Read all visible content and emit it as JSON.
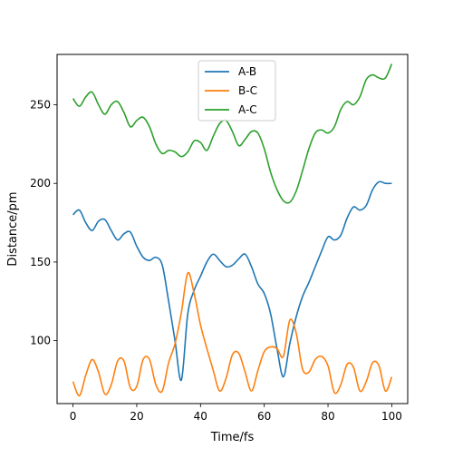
{
  "chart_data": {
    "type": "line",
    "xlabel": "Time/fs",
    "ylabel": "Distance/pm",
    "xlim": [
      -5,
      105
    ],
    "ylim": [
      60,
      282
    ],
    "xticks": [
      0,
      20,
      40,
      60,
      80,
      100
    ],
    "yticks": [
      100,
      150,
      200,
      250
    ],
    "grid": false,
    "legend_position": "upper-center",
    "x": [
      0,
      2,
      4,
      6,
      8,
      10,
      12,
      14,
      16,
      18,
      20,
      22,
      24,
      26,
      28,
      30,
      32,
      34,
      36,
      38,
      40,
      42,
      44,
      46,
      48,
      50,
      52,
      54,
      56,
      58,
      60,
      62,
      64,
      66,
      68,
      70,
      72,
      74,
      76,
      78,
      80,
      82,
      84,
      86,
      88,
      90,
      92,
      94,
      96,
      98,
      100
    ],
    "series": [
      {
        "name": "A-B",
        "color": "#1f77b4",
        "values": [
          180,
          183,
          175,
          170,
          176,
          177,
          170,
          164,
          168,
          169,
          160,
          153,
          151,
          153,
          148,
          125,
          100,
          75,
          117,
          132,
          141,
          150,
          155,
          151,
          147,
          148,
          152,
          155,
          147,
          136,
          130,
          117,
          95,
          77,
          98,
          115,
          128,
          137,
          147,
          157,
          166,
          164,
          167,
          178,
          185,
          183,
          186,
          196,
          201,
          200,
          200
        ]
      },
      {
        "name": "B-C",
        "color": "#ff7f0e",
        "values": [
          74,
          65,
          78,
          88,
          80,
          66,
          72,
          87,
          87,
          70,
          71,
          88,
          88,
          72,
          68,
          86,
          98,
          118,
          143,
          130,
          110,
          95,
          81,
          68,
          76,
          91,
          92,
          80,
          68,
          81,
          93,
          96,
          95,
          90,
          113,
          105,
          82,
          80,
          88,
          90,
          84,
          67,
          72,
          85,
          83,
          68,
          74,
          86,
          84,
          68,
          77
        ]
      },
      {
        "name": "A-C",
        "color": "#2ca02c",
        "values": [
          254,
          249,
          255,
          258,
          250,
          244,
          250,
          252,
          245,
          236,
          240,
          242,
          236,
          225,
          219,
          221,
          220,
          217,
          220,
          227,
          226,
          221,
          230,
          238,
          240,
          233,
          224,
          228,
          233,
          232,
          222,
          207,
          196,
          189,
          188,
          195,
          208,
          222,
          232,
          234,
          232,
          236,
          247,
          252,
          250,
          255,
          266,
          269,
          267,
          267,
          276
        ]
      }
    ]
  }
}
